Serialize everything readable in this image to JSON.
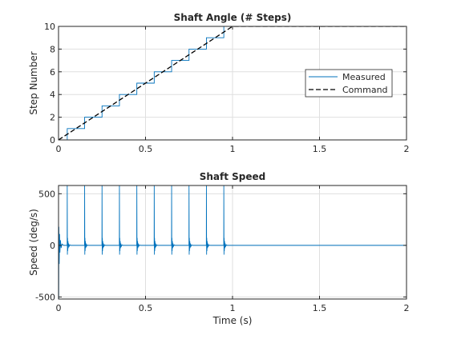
{
  "chart_data": [
    {
      "type": "line",
      "title": "Shaft Angle (# Steps)",
      "xlabel": "",
      "ylabel": "Step Number",
      "xlim": [
        0,
        2
      ],
      "ylim": [
        0,
        10
      ],
      "xticks": [
        0,
        0.5,
        1,
        1.5,
        2
      ],
      "xtick_labels": [
        "0",
        "0.5",
        "1",
        "1.5",
        "2"
      ],
      "yticks": [
        0,
        2,
        4,
        6,
        8,
        10
      ],
      "ytick_labels": [
        "0",
        "2",
        "4",
        "6",
        "8",
        "10"
      ],
      "grid": true,
      "legend": "right",
      "series": [
        {
          "name": "Measured",
          "color": "#0072bd",
          "style": "solid",
          "x": [
            0,
            0.05,
            0.05,
            0.15,
            0.15,
            0.25,
            0.25,
            0.35,
            0.35,
            0.45,
            0.45,
            0.55,
            0.55,
            0.65,
            0.65,
            0.75,
            0.75,
            0.85,
            0.85,
            0.95,
            0.95,
            2
          ],
          "y": [
            0,
            0,
            1,
            1,
            2,
            2,
            3,
            3,
            4,
            4,
            5,
            5,
            6,
            6,
            7,
            7,
            8,
            8,
            9,
            9,
            10,
            10
          ]
        },
        {
          "name": "Command",
          "color": "#000000",
          "style": "dashed",
          "x": [
            0,
            1,
            2
          ],
          "y": [
            0,
            10,
            10
          ]
        }
      ]
    },
    {
      "type": "line",
      "title": "Shaft Speed",
      "xlabel": "Time (s)",
      "ylabel": "Speed (deg/s)",
      "xlim": [
        0,
        2
      ],
      "ylim": [
        -520,
        580
      ],
      "xticks": [
        0,
        0.5,
        1,
        1.5,
        2
      ],
      "xtick_labels": [
        "0",
        "0.5",
        "1",
        "1.5",
        "2"
      ],
      "yticks": [
        -500,
        0,
        500
      ],
      "ytick_labels": [
        "-500",
        "0",
        "500"
      ],
      "grid": true,
      "series": [
        {
          "color": "#0072bd",
          "style": "solid",
          "pulse_times": [
            0.05,
            0.15,
            0.25,
            0.35,
            0.45,
            0.55,
            0.65,
            0.75,
            0.85,
            0.95
          ],
          "pulse_peak": 580,
          "start_transient": {
            "min": -520,
            "max": 180
          },
          "ringing_amplitude": 90,
          "x": [
            0,
            0.001,
            0.003,
            0.006,
            0.01,
            0.02,
            0.05,
            0.051,
            0.052,
            0.055,
            0.06,
            0.07,
            0.1,
            0.15,
            0.151,
            0.152,
            0.155,
            0.16,
            0.17,
            0.2,
            0.95,
            0.951,
            0.952,
            0.955,
            0.96,
            0.97,
            1,
            2
          ],
          "y": [
            0,
            -520,
            180,
            -250,
            80,
            20,
            0,
            580,
            -80,
            70,
            -40,
            20,
            0,
            0,
            580,
            -80,
            70,
            -40,
            20,
            0,
            0,
            580,
            -80,
            70,
            -40,
            20,
            0,
            0
          ]
        }
      ]
    }
  ]
}
